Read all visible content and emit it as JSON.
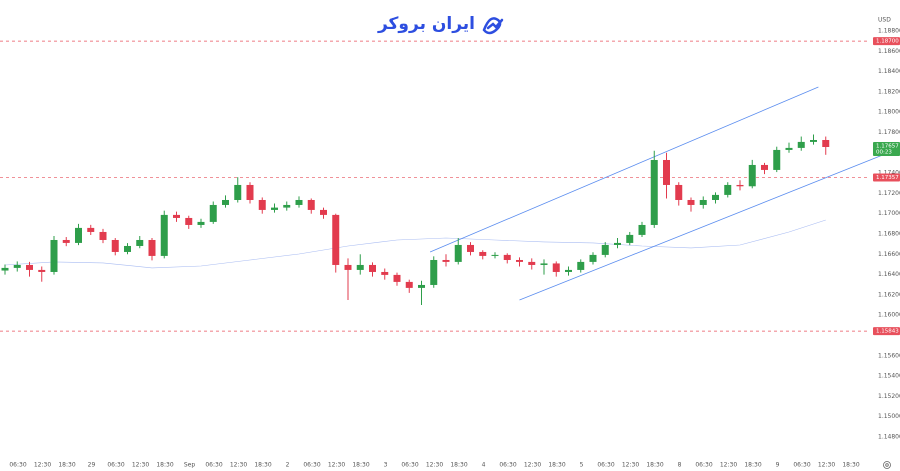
{
  "chart_data": {
    "type": "candlestick",
    "watermark": "ایران بروکر",
    "currency": "USD",
    "up_color": "#2e9e4a",
    "down_color": "#e23b4e",
    "ylim": [
      1.14623,
      1.19105
    ],
    "yticks": [
      {
        "value": 1.148,
        "label": "1.14800"
      },
      {
        "value": 1.15,
        "label": "1.15000"
      },
      {
        "value": 1.152,
        "label": "1.15200"
      },
      {
        "value": 1.154,
        "label": "1.15400"
      },
      {
        "value": 1.156,
        "label": "1.15600"
      },
      {
        "value": 1.16,
        "label": "1.16000"
      },
      {
        "value": 1.162,
        "label": "1.16200"
      },
      {
        "value": 1.164,
        "label": "1.16400"
      },
      {
        "value": 1.166,
        "label": "1.16600"
      },
      {
        "value": 1.168,
        "label": "1.16800"
      },
      {
        "value": 1.17,
        "label": "1.17000"
      },
      {
        "value": 1.172,
        "label": "1.17200"
      },
      {
        "value": 1.174,
        "label": "1.17400"
      },
      {
        "value": 1.178,
        "label": "1.17800"
      },
      {
        "value": 1.18,
        "label": "1.18000"
      },
      {
        "value": 1.182,
        "label": "1.18200"
      },
      {
        "value": 1.184,
        "label": "1.18400"
      },
      {
        "value": 1.186,
        "label": "1.18600"
      },
      {
        "value": 1.188,
        "label": "1.18800"
      }
    ],
    "grid": false,
    "x_labels": [
      "06:30",
      "12:30",
      "18:30",
      "29",
      "06:30",
      "12:30",
      "18:30",
      "Sep",
      "06:30",
      "12:30",
      "18:30",
      "2",
      "06:30",
      "12:30",
      "18:30",
      "3",
      "06:30",
      "12:30",
      "18:30",
      "4",
      "06:30",
      "12:30",
      "18:30",
      "5",
      "06:30",
      "12:30",
      "18:30",
      "8",
      "06:30",
      "12:30",
      "18:30",
      "9",
      "06:30",
      "12:30",
      "18:30"
    ],
    "candles": {
      "open": [
        1.1644,
        1.16466,
        1.16495,
        1.16446,
        1.16426,
        1.16741,
        1.16712,
        1.1686,
        1.1682,
        1.16741,
        1.16623,
        1.16682,
        1.16741,
        1.16584,
        1.16988,
        1.16958,
        1.16889,
        1.16919,
        1.17086,
        1.17135,
        1.17283,
        1.17135,
        1.17037,
        1.1706,
        1.17086,
        1.17135,
        1.17037,
        1.16988,
        1.16495,
        1.16446,
        1.16495,
        1.16426,
        1.16397,
        1.16328,
        1.16269,
        1.16298,
        1.16544,
        1.16525,
        1.16692,
        1.16623,
        1.16584,
        1.16594,
        1.16544,
        1.16525,
        1.16495,
        1.1651,
        1.16426,
        1.16446,
        1.16525,
        1.16594,
        1.16692,
        1.16712,
        1.16791,
        1.16889,
        1.17529,
        1.17283,
        1.17135,
        1.17086,
        1.17135,
        1.17185,
        1.17283,
        1.1727,
        1.1748,
        1.17431,
        1.17628,
        1.17648,
        1.17707,
        1.17726
      ],
      "high": [
        1.165,
        1.1653,
        1.16525,
        1.1648,
        1.1678,
        1.1677,
        1.169,
        1.1689,
        1.1685,
        1.1676,
        1.1671,
        1.1678,
        1.1676,
        1.1703,
        1.1702,
        1.1698,
        1.1695,
        1.1712,
        1.1718,
        1.1736,
        1.1731,
        1.1716,
        1.171,
        1.1712,
        1.1717,
        1.1715,
        1.1706,
        1.17,
        1.1656,
        1.166,
        1.1652,
        1.1646,
        1.1642,
        1.1635,
        1.1634,
        1.1658,
        1.166,
        1.1676,
        1.1672,
        1.1664,
        1.1662,
        1.1661,
        1.1657,
        1.1656,
        1.1655,
        1.1653,
        1.1648,
        1.1655,
        1.1662,
        1.1672,
        1.1676,
        1.1682,
        1.1692,
        1.1762,
        1.176,
        1.1731,
        1.1716,
        1.1717,
        1.1721,
        1.1731,
        1.1733,
        1.1753,
        1.175,
        1.1766,
        1.177,
        1.1776,
        1.1778,
        1.1776
      ],
      "low": [
        1.164,
        1.1643,
        1.1638,
        1.1633,
        1.164,
        1.1668,
        1.1669,
        1.1679,
        1.1671,
        1.1659,
        1.166,
        1.1666,
        1.1654,
        1.1656,
        1.1692,
        1.1685,
        1.1686,
        1.169,
        1.1706,
        1.1711,
        1.171,
        1.17,
        1.1701,
        1.1703,
        1.1706,
        1.17,
        1.1695,
        1.1642,
        1.1615,
        1.164,
        1.1638,
        1.1635,
        1.1629,
        1.1622,
        1.161,
        1.1627,
        1.1648,
        1.165,
        1.1659,
        1.1655,
        1.1656,
        1.1651,
        1.1648,
        1.1645,
        1.164,
        1.1638,
        1.1639,
        1.1642,
        1.165,
        1.1657,
        1.1666,
        1.1669,
        1.1677,
        1.1686,
        1.1715,
        1.1708,
        1.1702,
        1.1705,
        1.171,
        1.1716,
        1.1723,
        1.1725,
        1.1739,
        1.1741,
        1.176,
        1.1762,
        1.1768,
        1.1758
      ],
      "close": [
        1.16466,
        1.16495,
        1.16446,
        1.16426,
        1.16741,
        1.16712,
        1.1686,
        1.1682,
        1.16741,
        1.16623,
        1.16682,
        1.16741,
        1.16584,
        1.16988,
        1.16958,
        1.16889,
        1.16919,
        1.17086,
        1.17135,
        1.17283,
        1.17135,
        1.17037,
        1.1706,
        1.17086,
        1.17135,
        1.17037,
        1.16988,
        1.16495,
        1.16446,
        1.16495,
        1.16426,
        1.16397,
        1.16328,
        1.16269,
        1.16298,
        1.16544,
        1.16525,
        1.16692,
        1.16623,
        1.16584,
        1.16594,
        1.16544,
        1.16525,
        1.16495,
        1.1651,
        1.16426,
        1.16446,
        1.16525,
        1.16594,
        1.16692,
        1.16712,
        1.16791,
        1.16889,
        1.17529,
        1.17283,
        1.17135,
        1.17086,
        1.17135,
        1.17185,
        1.17283,
        1.1727,
        1.1748,
        1.17431,
        1.17628,
        1.17648,
        1.17707,
        1.17726,
        1.17657
      ]
    },
    "moving_average": {
      "color": "#a9bcf2",
      "x": [
        0,
        4,
        8,
        12,
        16,
        20,
        24,
        28,
        32,
        36,
        40,
        44,
        48,
        52,
        56,
        60,
        64,
        67
      ],
      "values": [
        1.16495,
        1.16525,
        1.16515,
        1.16466,
        1.16485,
        1.16544,
        1.16603,
        1.16682,
        1.16741,
        1.16761,
        1.16741,
        1.16722,
        1.16712,
        1.16682,
        1.16663,
        1.16692,
        1.1682,
        1.16938
      ]
    },
    "channel": {
      "color": "#5b8def",
      "lines": [
        {
          "x": [
            34.7,
            66.4
          ],
          "values": [
            1.16623,
            1.18248
          ]
        },
        {
          "x": [
            42.0,
            73.1
          ],
          "values": [
            1.1615,
            1.17648
          ]
        }
      ]
    },
    "price_lines": [
      {
        "value": 1.187,
        "label": "1.18700",
        "color": "#e8505c"
      },
      {
        "value": 1.17357,
        "label": "1.17357",
        "color": "#e8505c"
      },
      {
        "value": 1.15843,
        "label": "1.15843",
        "color": "#e8505c"
      }
    ],
    "current_price": {
      "value": 1.17657,
      "label": "1.17657",
      "countdown": "00:23",
      "color": "#3aa84f"
    }
  }
}
